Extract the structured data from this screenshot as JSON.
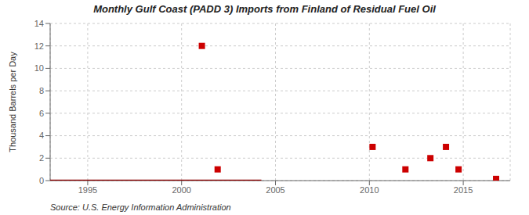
{
  "chart_data": {
    "type": "scatter",
    "title": "Monthly Gulf Coast (PADD 3) Imports from Finland of Residual Fuel Oil",
    "ylabel": "Thousand Barrels per Day",
    "annotations": [
      "Source: U.S. Energy Information Administration"
    ],
    "xlim": [
      1993.0,
      2017.5
    ],
    "xticks": [
      1995,
      2000,
      2005,
      2010,
      2015
    ],
    "ylim": [
      0,
      14
    ],
    "yticks": [
      0,
      2,
      4,
      6,
      8,
      10,
      12,
      14
    ],
    "grid": true,
    "series": [
      {
        "type": "line",
        "color": "#8b0000",
        "x": [
          1993.0,
          2004.25
        ],
        "values": [
          0,
          0
        ]
      },
      {
        "type": "scatter",
        "color": "#cc0000",
        "marker": "square",
        "x": [
          2001.08,
          2001.92,
          2010.17,
          2011.92,
          2013.25,
          2014.08,
          2014.75,
          2016.75
        ],
        "values": [
          12,
          1,
          3,
          1,
          2,
          3,
          1,
          0.15
        ]
      }
    ]
  }
}
